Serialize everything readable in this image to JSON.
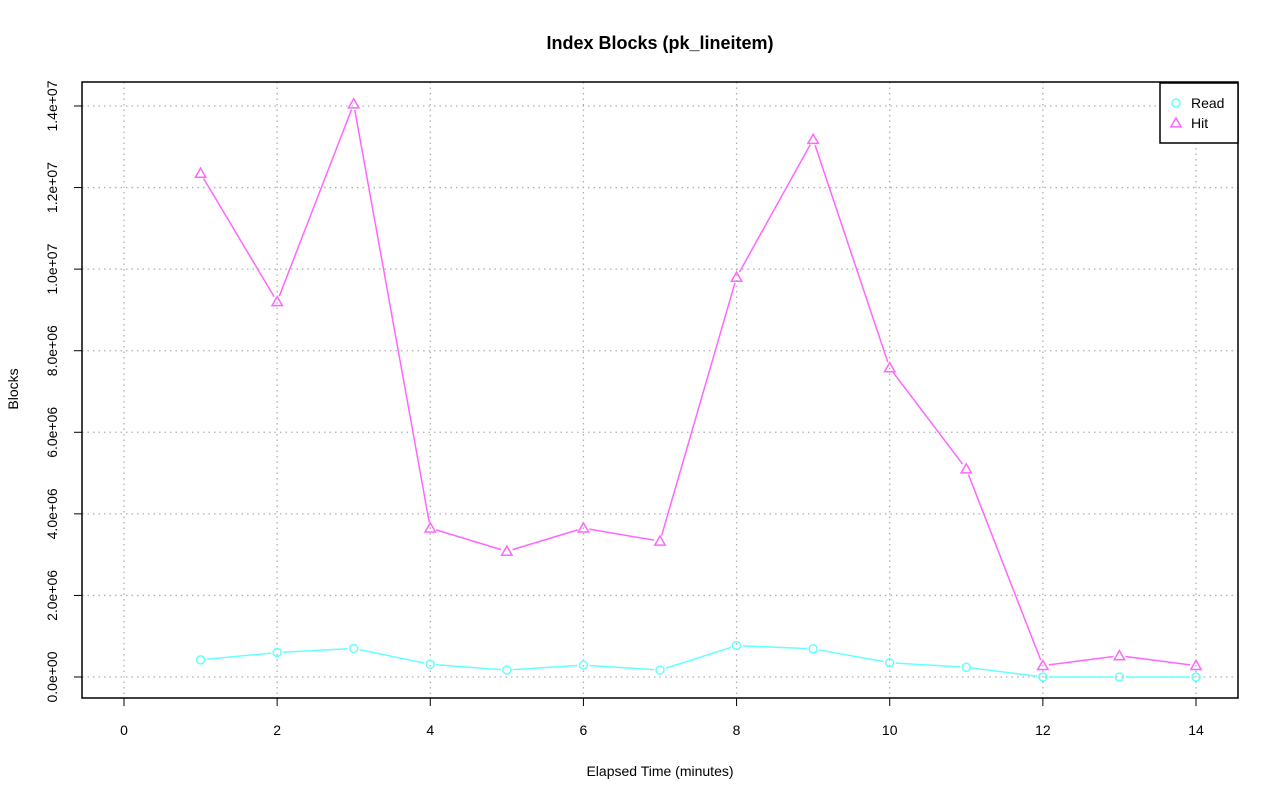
{
  "chart_data": {
    "type": "line",
    "title": "Index Blocks (pk_lineitem)",
    "xlabel": "Elapsed Time (minutes)",
    "ylabel": "Blocks",
    "xlim": [
      0,
      14
    ],
    "ylim": [
      0,
      14000000
    ],
    "x_ticks": [
      0,
      2,
      4,
      6,
      8,
      10,
      12,
      14
    ],
    "x_tick_labels": [
      "0",
      "2",
      "4",
      "6",
      "8",
      "10",
      "12",
      "14"
    ],
    "y_ticks": [
      0,
      2000000,
      4000000,
      6000000,
      8000000,
      10000000,
      12000000,
      14000000
    ],
    "y_tick_labels": [
      "0.0e+00",
      "2.0e+06",
      "4.0e+06",
      "6.0e+06",
      "8.0e+06",
      "1.0e+07",
      "1.2e+07",
      "1.4e+07"
    ],
    "grid": true,
    "legend_position": "top-right",
    "x": [
      1,
      2,
      3,
      4,
      5,
      6,
      7,
      8,
      9,
      10,
      11,
      12,
      13,
      14
    ],
    "series": [
      {
        "name": "Read",
        "color": "#66ffff",
        "marker": "circle",
        "values": [
          420000,
          600000,
          700000,
          310000,
          170000,
          290000,
          170000,
          770000,
          690000,
          350000,
          240000,
          0,
          0,
          0
        ]
      },
      {
        "name": "Hit",
        "color": "#ff66ff",
        "marker": "triangle",
        "values": [
          12350000,
          9200000,
          14050000,
          3650000,
          3080000,
          3650000,
          3330000,
          9800000,
          13180000,
          7580000,
          5100000,
          280000,
          520000,
          280000
        ]
      }
    ]
  }
}
